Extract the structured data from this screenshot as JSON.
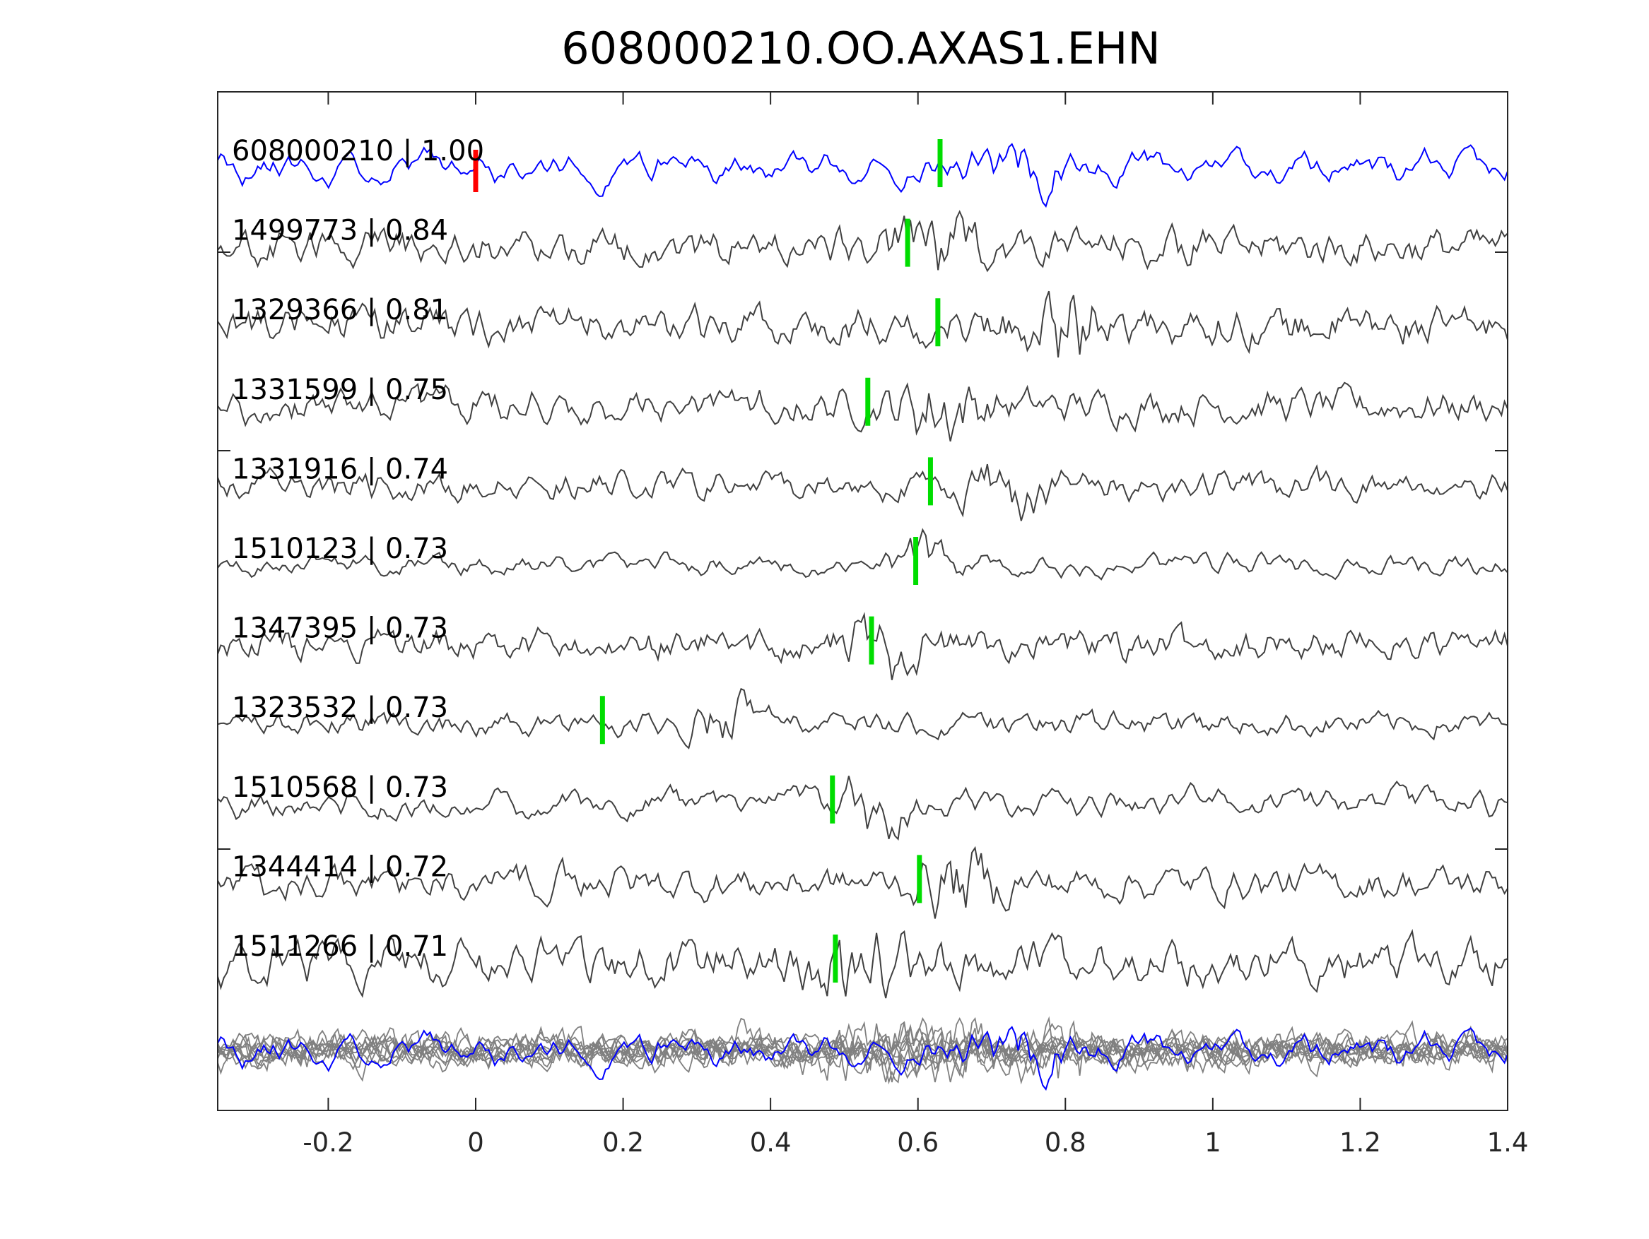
{
  "chart_data": {
    "type": "line",
    "title": "608000210.OO.AXAS1.EHN",
    "xlabel": "",
    "ylabel": "",
    "xlim": [
      -0.35,
      1.4
    ],
    "xticks": [
      "-0.2",
      "0",
      "0.2",
      "0.4",
      "0.6",
      "0.8",
      "1",
      "1.2",
      "1.4"
    ],
    "xtick_values": [
      -0.2,
      0,
      0.2,
      0.4,
      0.6,
      0.8,
      1,
      1.2,
      1.4
    ],
    "grid": false,
    "reference_pick": {
      "time": 0,
      "color": "#ff0000"
    },
    "series": [
      {
        "name": "608000210 | 1.00",
        "color": "#0000ff",
        "pick": 0.63,
        "seed": 11,
        "smooth": 0.55,
        "event": 0.74
      },
      {
        "name": "1499773 | 0.84",
        "color": "#404040",
        "pick": 0.586,
        "seed": 23,
        "smooth": 0.2,
        "event": 0.62
      },
      {
        "name": "1329366 | 0.81",
        "color": "#404040",
        "pick": 0.627,
        "seed": 37,
        "smooth": 0.15,
        "event": 0.8
      },
      {
        "name": "1331599 | 0.75",
        "color": "#404040",
        "pick": 0.532,
        "seed": 41,
        "smooth": 0.25,
        "event": 0.63
      },
      {
        "name": "1331916 | 0.74",
        "color": "#404040",
        "pick": 0.617,
        "seed": 53,
        "smooth": 0.3,
        "event": 0.72
      },
      {
        "name": "1510123 | 0.73",
        "color": "#404040",
        "pick": 0.597,
        "seed": 67,
        "smooth": 0.4,
        "event": 0.62
      },
      {
        "name": "1347395 | 0.73",
        "color": "#404040",
        "pick": 0.537,
        "seed": 71,
        "smooth": 0.15,
        "event": 0.55
      },
      {
        "name": "1323532 | 0.73",
        "color": "#404040",
        "pick": 0.172,
        "seed": 83,
        "smooth": 0.2,
        "event": 0.34
      },
      {
        "name": "1510568 | 0.73",
        "color": "#404040",
        "pick": 0.484,
        "seed": 97,
        "smooth": 0.45,
        "event": 0.54
      },
      {
        "name": "1344414 | 0.72",
        "color": "#404040",
        "pick": 0.602,
        "seed": 101,
        "smooth": 0.3,
        "event": 0.66
      },
      {
        "name": "1511266 | 0.71",
        "color": "#404040",
        "pick": 0.488,
        "seed": 113,
        "smooth": 0.2,
        "event": 0.52
      }
    ],
    "stack": {
      "description_color": "#808080",
      "reference_color": "#0000ff"
    },
    "pick_color": "#00dd00"
  }
}
